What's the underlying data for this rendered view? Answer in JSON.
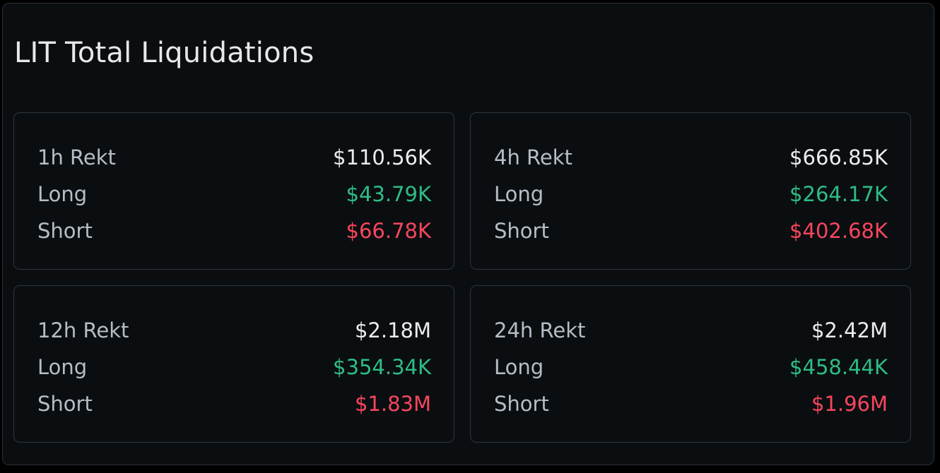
{
  "title": "LIT Total Liquidations",
  "colors": {
    "background": "#0b0e11",
    "border": "#2b3139",
    "long": "#2ebd85",
    "short": "#f6465d",
    "text_primary": "#eaecef",
    "text_secondary": "#b7bdc6"
  },
  "cards": [
    {
      "period_label": "1h Rekt",
      "total": "$110.56K",
      "long_label": "Long",
      "long_value": "$43.79K",
      "short_label": "Short",
      "short_value": "$66.78K"
    },
    {
      "period_label": "4h Rekt",
      "total": "$666.85K",
      "long_label": "Long",
      "long_value": "$264.17K",
      "short_label": "Short",
      "short_value": "$402.68K"
    },
    {
      "period_label": "12h Rekt",
      "total": "$2.18M",
      "long_label": "Long",
      "long_value": "$354.34K",
      "short_label": "Short",
      "short_value": "$1.83M"
    },
    {
      "period_label": "24h Rekt",
      "total": "$2.42M",
      "long_label": "Long",
      "long_value": "$458.44K",
      "short_label": "Short",
      "short_value": "$1.96M"
    }
  ]
}
